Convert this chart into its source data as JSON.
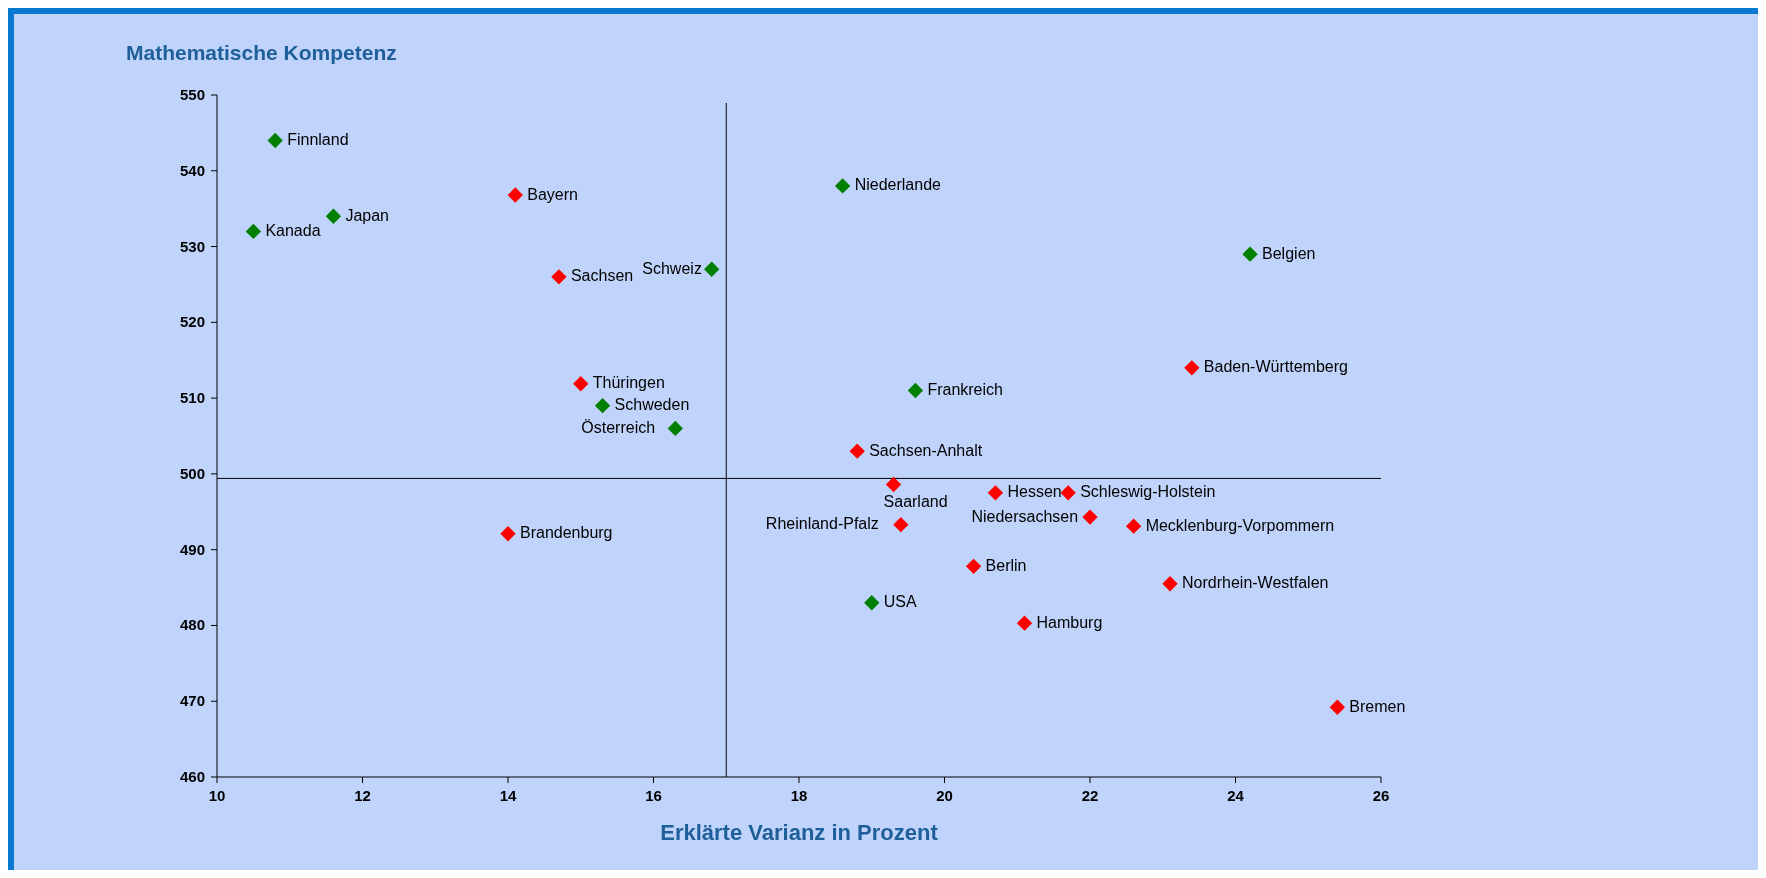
{
  "chart_data": {
    "type": "scatter",
    "title": "Mathematische Kompetenz",
    "xlabel": "Erklärte Varianz in Prozent",
    "xlim": [
      10,
      26
    ],
    "xticks": [
      10,
      12,
      14,
      16,
      18,
      20,
      22,
      24,
      26
    ],
    "ylim": [
      460,
      550
    ],
    "yticks": [
      460,
      470,
      480,
      490,
      500,
      510,
      520,
      530,
      540,
      550
    ],
    "grid": false,
    "marker": "diamond",
    "series": [
      {
        "color": "#008000",
        "x": [
          10.8,
          11.6,
          10.5,
          18.6,
          16.8,
          24.2,
          19.6,
          15.3,
          16.3,
          19.0
        ],
        "values": [
          544,
          534,
          532,
          538,
          527,
          529,
          511,
          509,
          506,
          483
        ]
      },
      {
        "color": "#ff0000",
        "x": [
          14.1,
          14.7,
          15.0,
          14.0,
          18.8,
          19.3,
          20.7,
          21.7,
          22.0,
          22.6,
          19.4,
          20.4,
          21.1,
          23.1,
          23.4,
          25.4
        ],
        "values": [
          536.8,
          526,
          511.9,
          492.1,
          503,
          498.6,
          497.5,
          497.5,
          494.3,
          493.1,
          493.3,
          487.8,
          480.3,
          485.5,
          514,
          469.2
        ]
      }
    ],
    "ref_lines": [
      {
        "axis": "x",
        "value": 17,
        "color": "#000000"
      },
      {
        "axis": "y",
        "value": 499.4,
        "color": "#000000"
      }
    ],
    "annotations": [
      {
        "text": "Finnland",
        "x": 10.8,
        "y": 544
      },
      {
        "text": "Japan",
        "x": 11.6,
        "y": 534
      },
      {
        "text": "Kanada",
        "x": 10.5,
        "y": 532
      },
      {
        "text": "Niederlande",
        "x": 18.6,
        "y": 538
      },
      {
        "text": "Schweiz",
        "x": 16.8,
        "y": 527
      },
      {
        "text": "Belgien",
        "x": 24.2,
        "y": 529
      },
      {
        "text": "Frankreich",
        "x": 19.6,
        "y": 511
      },
      {
        "text": "Schweden",
        "x": 15.3,
        "y": 509
      },
      {
        "text": "Österreich",
        "x": 16.3,
        "y": 506
      },
      {
        "text": "USA",
        "x": 19.0,
        "y": 483
      },
      {
        "text": "Bayern",
        "x": 14.1,
        "y": 536.8
      },
      {
        "text": "Sachsen",
        "x": 14.7,
        "y": 526
      },
      {
        "text": "Thüringen",
        "x": 15.0,
        "y": 511.9
      },
      {
        "text": "Brandenburg",
        "x": 14.0,
        "y": 492.1
      },
      {
        "text": "Sachsen-Anhalt",
        "x": 18.8,
        "y": 503
      },
      {
        "text": "Saarland",
        "x": 19.3,
        "y": 498.6
      },
      {
        "text": "Hessen",
        "x": 20.7,
        "y": 497.5
      },
      {
        "text": "Schleswig-Holstein",
        "x": 21.7,
        "y": 497.5
      },
      {
        "text": "Niedersachsen",
        "x": 22.0,
        "y": 494.3
      },
      {
        "text": "Mecklenburg-Vorpommern",
        "x": 22.6,
        "y": 493.1
      },
      {
        "text": "Rheinland-Pfalz",
        "x": 19.4,
        "y": 493.3
      },
      {
        "text": "Berlin",
        "x": 20.4,
        "y": 487.8
      },
      {
        "text": "Hamburg",
        "x": 21.1,
        "y": 480.3
      },
      {
        "text": "Nordrhein-Westfalen",
        "x": 23.1,
        "y": 485.5
      },
      {
        "text": "Baden-Württemberg",
        "x": 23.4,
        "y": 514
      },
      {
        "text": "Bremen",
        "x": 25.4,
        "y": 469.2
      }
    ]
  }
}
